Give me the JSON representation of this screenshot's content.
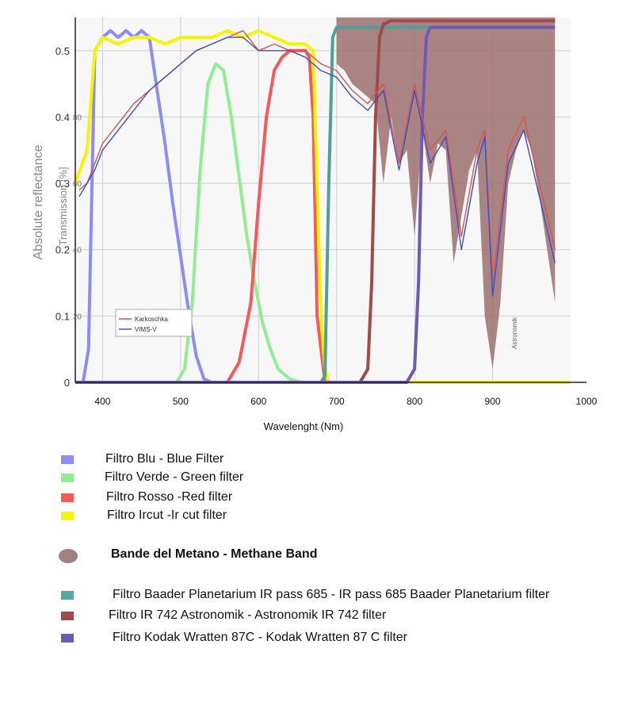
{
  "chart_data": {
    "type": "line",
    "xlabel": "Wavelenght (Nm)",
    "ylabel": "Absolute reflectance",
    "ylabel_secondary": "Transmission [%]",
    "xlim": [
      365,
      1000
    ],
    "ylim": [
      0,
      0.55
    ],
    "x_ticks": [
      400,
      500,
      600,
      700,
      800,
      900,
      1000
    ],
    "y_ticks": [
      0,
      0.1,
      0.2,
      0.3,
      0.4,
      0.5
    ],
    "y_ticks_secondary": [
      20,
      40,
      60,
      80
    ],
    "grid": true,
    "watermark": "Astronomik",
    "inset_legend": {
      "position": "bottom-left",
      "entries": [
        {
          "name": "Karkoschka",
          "color": "#d9534f"
        },
        {
          "name": "VIMS-V",
          "color": "#3b4fc4"
        }
      ]
    },
    "series": [
      {
        "name": "Filtro Blu - Blue Filter",
        "color": "#8c8cf4",
        "x": [
          365,
          375,
          382,
          390,
          400,
          410,
          420,
          430,
          440,
          450,
          460,
          470,
          480,
          490,
          500,
          510,
          520,
          530,
          540,
          1000
        ],
        "y": [
          0,
          0,
          0.05,
          0.5,
          0.52,
          0.53,
          0.52,
          0.53,
          0.52,
          0.53,
          0.52,
          0.44,
          0.36,
          0.27,
          0.19,
          0.11,
          0.04,
          0.005,
          0,
          0
        ]
      },
      {
        "name": "Filtro Verde - Green filter",
        "color": "#90ee90",
        "x": [
          365,
          495,
          505,
          515,
          525,
          535,
          545,
          555,
          565,
          575,
          585,
          595,
          605,
          615,
          625,
          640,
          655,
          1000
        ],
        "y": [
          0,
          0,
          0.02,
          0.12,
          0.32,
          0.45,
          0.48,
          0.47,
          0.4,
          0.31,
          0.22,
          0.15,
          0.09,
          0.05,
          0.02,
          0.005,
          0,
          0
        ]
      },
      {
        "name": "Filtro Rosso -Red filter",
        "color": "#f55a5a",
        "x": [
          365,
          560,
          575,
          590,
          600,
          610,
          620,
          630,
          640,
          650,
          660,
          665,
          670,
          675,
          685,
          1000
        ],
        "y": [
          0,
          0,
          0.03,
          0.12,
          0.27,
          0.4,
          0.47,
          0.49,
          0.5,
          0.5,
          0.5,
          0.49,
          0.4,
          0.1,
          0,
          0
        ]
      },
      {
        "name": "Filtro Ircut -Ir cut filter",
        "color": "#f5f500",
        "x": [
          365,
          380,
          390,
          400,
          420,
          440,
          460,
          480,
          500,
          520,
          540,
          560,
          580,
          600,
          620,
          640,
          660,
          670,
          675,
          680,
          685,
          690,
          1000
        ],
        "y": [
          0.3,
          0.35,
          0.5,
          0.52,
          0.51,
          0.52,
          0.52,
          0.51,
          0.52,
          0.52,
          0.52,
          0.53,
          0.52,
          0.53,
          0.52,
          0.51,
          0.51,
          0.5,
          0.3,
          0.1,
          0.02,
          0,
          0
        ]
      },
      {
        "name": "Filtro Baader Planetarium IR pass 685 - IR pass 685 Baader Planetarium filter",
        "color": "#4f9f9a",
        "x": [
          365,
          680,
          685,
          690,
          695,
          700,
          720,
          760,
          800,
          850,
          900,
          950,
          980
        ],
        "y": [
          0,
          0,
          0.01,
          0.3,
          0.52,
          0.535,
          0.535,
          0.535,
          0.535,
          0.535,
          0.535,
          0.535,
          0.535
        ]
      },
      {
        "name": "Filtro IR 742 Astronomik  - Astronomik IR 742 filter",
        "color": "#a04a4a",
        "x": [
          365,
          730,
          740,
          745,
          750,
          755,
          760,
          770,
          800,
          850,
          900,
          950,
          980
        ],
        "y": [
          0,
          0,
          0.02,
          0.15,
          0.4,
          0.52,
          0.54,
          0.545,
          0.545,
          0.545,
          0.545,
          0.545,
          0.545
        ]
      },
      {
        "name": "Filtro Kodak Wratten 87C - Kodak Wratten 87 C filter",
        "color": "#6f5bb5",
        "x": [
          365,
          790,
          800,
          805,
          810,
          815,
          820,
          830,
          850,
          900,
          950,
          980
        ],
        "y": [
          0,
          0,
          0.02,
          0.15,
          0.4,
          0.52,
          0.535,
          0.535,
          0.535,
          0.535,
          0.535,
          0.535
        ]
      },
      {
        "name": "Karkoschka",
        "color": "#d9534f",
        "x": [
          370,
          380,
          390,
          400,
          420,
          440,
          460,
          480,
          500,
          520,
          540,
          560,
          580,
          600,
          620,
          640,
          660,
          680,
          700,
          720,
          740,
          760,
          780,
          800,
          820,
          840,
          860,
          880,
          890,
          900,
          920,
          940,
          960,
          980
        ],
        "y": [
          0.29,
          0.3,
          0.33,
          0.36,
          0.39,
          0.42,
          0.44,
          0.46,
          0.48,
          0.5,
          0.51,
          0.52,
          0.53,
          0.5,
          0.51,
          0.5,
          0.5,
          0.48,
          0.47,
          0.44,
          0.42,
          0.45,
          0.33,
          0.45,
          0.35,
          0.38,
          0.22,
          0.35,
          0.38,
          0.15,
          0.35,
          0.4,
          0.3,
          0.2
        ]
      },
      {
        "name": "VIMS-V",
        "color": "#3b4fc4",
        "x": [
          370,
          380,
          390,
          400,
          420,
          440,
          460,
          480,
          500,
          520,
          540,
          560,
          580,
          600,
          620,
          640,
          660,
          680,
          700,
          720,
          740,
          760,
          780,
          800,
          820,
          840,
          860,
          880,
          890,
          900,
          920,
          940,
          960,
          980
        ],
        "y": [
          0.28,
          0.3,
          0.32,
          0.35,
          0.38,
          0.41,
          0.44,
          0.46,
          0.48,
          0.5,
          0.51,
          0.52,
          0.52,
          0.5,
          0.5,
          0.5,
          0.49,
          0.47,
          0.46,
          0.43,
          0.41,
          0.44,
          0.32,
          0.44,
          0.33,
          0.37,
          0.2,
          0.33,
          0.37,
          0.13,
          0.33,
          0.38,
          0.28,
          0.18
        ]
      }
    ],
    "methane_band": {
      "name": "Bande del Metano - Methane Band",
      "color": "#9c6f6f",
      "x": [
        700,
        710,
        720,
        730,
        740,
        750,
        760,
        770,
        780,
        790,
        800,
        810,
        820,
        830,
        840,
        850,
        860,
        870,
        880,
        890,
        900,
        910,
        920,
        930,
        940,
        950,
        960,
        970,
        980
      ],
      "upper": [
        0.55,
        0.55,
        0.55,
        0.55,
        0.55,
        0.55,
        0.55,
        0.55,
        0.55,
        0.55,
        0.55,
        0.55,
        0.55,
        0.55,
        0.55,
        0.55,
        0.55,
        0.55,
        0.55,
        0.55,
        0.55,
        0.55,
        0.55,
        0.55,
        0.55,
        0.55,
        0.55,
        0.55,
        0.55
      ],
      "lower": [
        0.48,
        0.47,
        0.45,
        0.44,
        0.43,
        0.42,
        0.3,
        0.4,
        0.33,
        0.35,
        0.22,
        0.38,
        0.3,
        0.36,
        0.35,
        0.18,
        0.25,
        0.32,
        0.35,
        0.1,
        0.02,
        0.12,
        0.3,
        0.35,
        0.38,
        0.35,
        0.28,
        0.2,
        0.12
      ]
    }
  },
  "legend": [
    {
      "label": "Filtro Blu - Blue Filter",
      "color": "#8c8cf4",
      "shape": "square"
    },
    {
      "label": "Filtro Verde - Green filter",
      "color": "#90ee90",
      "shape": "square"
    },
    {
      "label": "Filtro Rosso -Red filter",
      "color": "#f55a5a",
      "shape": "square"
    },
    {
      "label": "Filtro Ircut -Ir cut filter",
      "color": "#f5f500",
      "shape": "square"
    },
    {
      "label": "Bande del Metano - Methane Band",
      "color": "#a08080",
      "shape": "ellipse",
      "bold": true
    },
    {
      "label": "Filtro Baader Planetarium IR pass 685 - IR pass 685 Baader Planetarium filter",
      "color": "#55a8a2",
      "shape": "square"
    },
    {
      "label": "Filtro IR 742 Astronomik  - Astronomik IR 742 filter",
      "color": "#a04a4a",
      "shape": "square"
    },
    {
      "label": "Filtro Kodak Wratten 87C - Kodak Wratten 87 C filter",
      "color": "#6f5bb5",
      "shape": "square"
    }
  ]
}
